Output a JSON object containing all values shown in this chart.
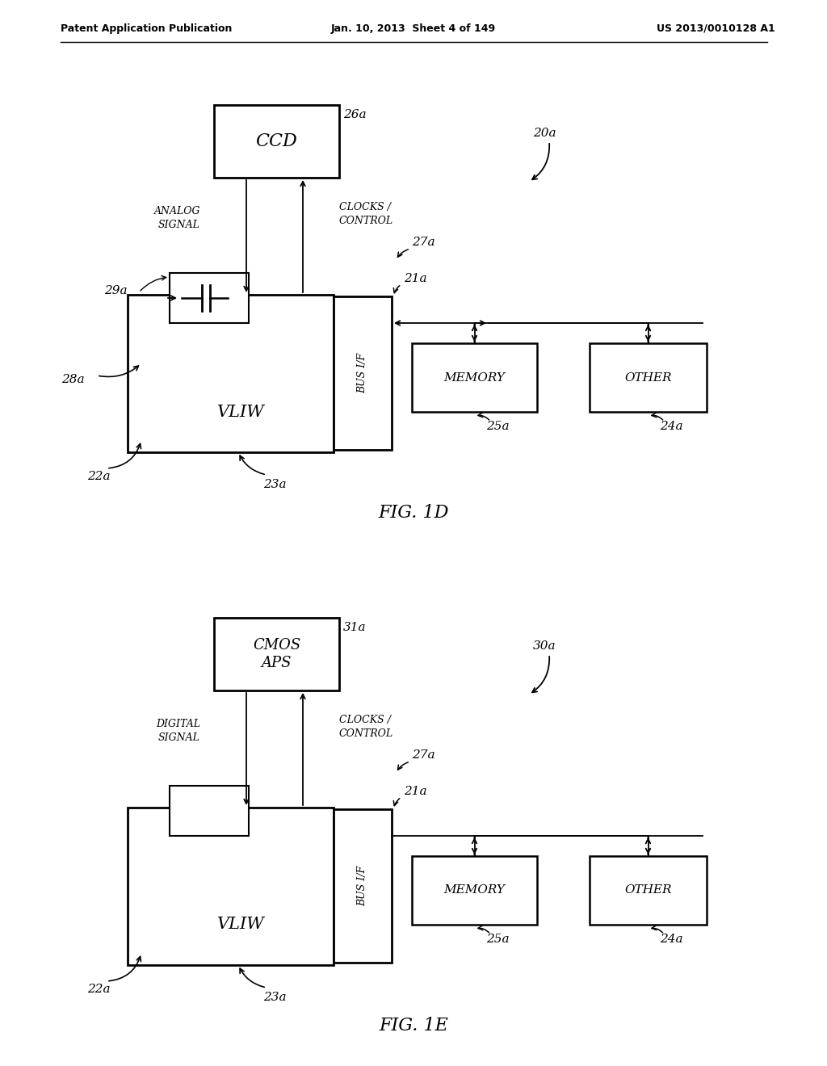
{
  "background_color": "#ffffff",
  "header_left": "Patent Application Publication",
  "header_center": "Jan. 10, 2013  Sheet 4 of 149",
  "header_right": "US 2013/0010128 A1",
  "fig1d_title": "FIG. 1D",
  "fig1e_title": "FIG. 1E"
}
